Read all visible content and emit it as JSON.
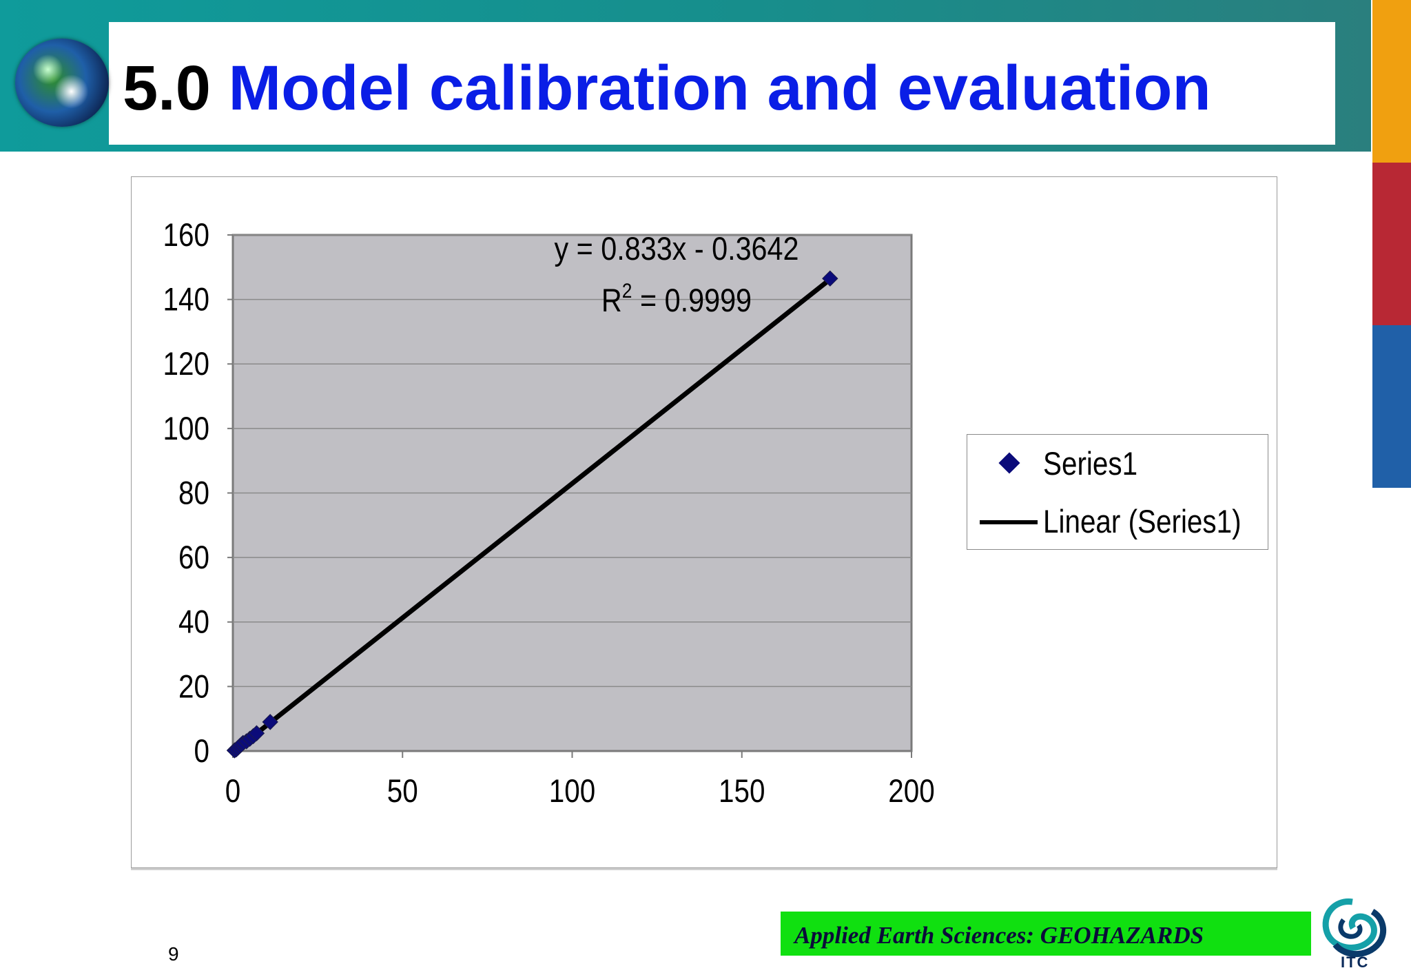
{
  "slide": {
    "title_number": "5.0",
    "title_text": "Model calibration and evaluation",
    "footer": "Applied Earth Sciences: GEOHAZARDS",
    "page_number": "9",
    "logo_text": "ITC",
    "colors": {
      "header_band": "#0f9b9b",
      "title_number": "#000000",
      "title_text": "#0a1ee6",
      "footer_box": "#10e010",
      "strip_orange": "#f0a010",
      "strip_red": "#b82834",
      "strip_blue": "#2060a8"
    }
  },
  "chart_data": {
    "type": "scatter",
    "title": "",
    "xlabel": "",
    "ylabel": "",
    "xlim": [
      0,
      200
    ],
    "ylim": [
      0,
      160
    ],
    "x_ticks": [
      "0",
      "50",
      "100",
      "150",
      "200"
    ],
    "y_ticks": [
      "0",
      "20",
      "40",
      "60",
      "80",
      "100",
      "120",
      "140",
      "160"
    ],
    "grid": true,
    "plot_background": "#c0bfc4",
    "legend_position": "right",
    "series": [
      {
        "name": "Series1",
        "marker": "diamond",
        "color": "#0b0b7a",
        "x": [
          0.5,
          1,
          1.5,
          2,
          2.5,
          3,
          4,
          5,
          6,
          7,
          11,
          176
        ],
        "y": [
          0.2,
          0.5,
          1,
          1.5,
          2,
          2.5,
          3,
          3.8,
          4.6,
          5.5,
          9,
          146.5
        ]
      }
    ],
    "trendline": {
      "name": "Linear (Series1)",
      "type": "linear",
      "slope": 0.833,
      "intercept": -0.3642,
      "x_range": [
        0,
        176
      ],
      "color": "#000000"
    },
    "annotations": {
      "equation": "y = 0.833x - 0.3642",
      "r2_prefix": "R",
      "r2_exponent": "2",
      "r2_value": " = 0.9999"
    },
    "legend": [
      "Series1",
      "Linear (Series1)"
    ]
  }
}
